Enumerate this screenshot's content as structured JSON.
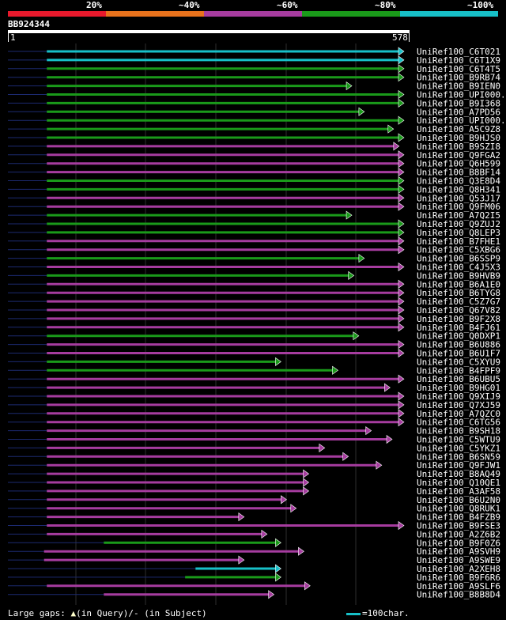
{
  "legend": [
    {
      "label": "20%",
      "color": "#e8192c"
    },
    {
      "label": "~40%",
      "color": "#e8721c"
    },
    {
      "label": "~60%",
      "color": "#a63c9f"
    },
    {
      "label": "~80%",
      "color": "#1a9a1a"
    },
    {
      "label": "~100%",
      "color": "#17c0c8"
    }
  ],
  "query": {
    "name": "BB924344",
    "start_label": "1",
    "end_label": "578",
    "length": 578
  },
  "hits": [
    {
      "name": "UniRef100_C6T021",
      "start": 56,
      "end": 570,
      "color": "cyan"
    },
    {
      "name": "UniRef100_C6T1X9",
      "start": 56,
      "end": 570,
      "color": "cyan"
    },
    {
      "name": "UniRef100_C6T4T5",
      "start": 56,
      "end": 570,
      "color": "green"
    },
    {
      "name": "UniRef100_B9RB74",
      "start": 56,
      "end": 570,
      "color": "green"
    },
    {
      "name": "UniRef100_B9IEN0",
      "start": 56,
      "end": 495,
      "color": "green"
    },
    {
      "name": "UniRef100_UPI000..",
      "start": 56,
      "end": 570,
      "color": "green"
    },
    {
      "name": "UniRef100_B9I368",
      "start": 56,
      "end": 570,
      "color": "green"
    },
    {
      "name": "UniRef100_A7PD56",
      "start": 56,
      "end": 513,
      "color": "green"
    },
    {
      "name": "UniRef100_UPI000..",
      "start": 56,
      "end": 570,
      "color": "green"
    },
    {
      "name": "UniRef100_A5C9Z8",
      "start": 56,
      "end": 555,
      "color": "green"
    },
    {
      "name": "UniRef100_B9HJS0",
      "start": 56,
      "end": 570,
      "color": "green"
    },
    {
      "name": "UniRef100_B9SZI8",
      "start": 56,
      "end": 563,
      "color": "purple"
    },
    {
      "name": "UniRef100_Q9FGA2",
      "start": 56,
      "end": 570,
      "color": "purple"
    },
    {
      "name": "UniRef100_Q6H599",
      "start": 56,
      "end": 570,
      "color": "purple"
    },
    {
      "name": "UniRef100_B8BF14",
      "start": 56,
      "end": 570,
      "color": "purple"
    },
    {
      "name": "UniRef100_Q3E8D4",
      "start": 56,
      "end": 570,
      "color": "green"
    },
    {
      "name": "UniRef100_Q8H341",
      "start": 56,
      "end": 570,
      "color": "green"
    },
    {
      "name": "UniRef100_Q53J17",
      "start": 56,
      "end": 570,
      "color": "purple"
    },
    {
      "name": "UniRef100_Q9FM06",
      "start": 56,
      "end": 570,
      "color": "purple"
    },
    {
      "name": "UniRef100_A7Q2I5",
      "start": 56,
      "end": 495,
      "color": "green"
    },
    {
      "name": "UniRef100_Q9ZUJ2",
      "start": 56,
      "end": 570,
      "color": "green"
    },
    {
      "name": "UniRef100_Q8LEP3",
      "start": 56,
      "end": 570,
      "color": "green"
    },
    {
      "name": "UniRef100_B7FHE1",
      "start": 56,
      "end": 570,
      "color": "purple"
    },
    {
      "name": "UniRef100_C5XBG6",
      "start": 56,
      "end": 570,
      "color": "purple"
    },
    {
      "name": "UniRef100_B6SSP9",
      "start": 56,
      "end": 513,
      "color": "green"
    },
    {
      "name": "UniRef100_C4J5X3",
      "start": 56,
      "end": 570,
      "color": "purple"
    },
    {
      "name": "UniRef100_B9HVB9",
      "start": 56,
      "end": 498,
      "color": "green"
    },
    {
      "name": "UniRef100_B6A1E0",
      "start": 56,
      "end": 570,
      "color": "purple"
    },
    {
      "name": "UniRef100_B6TYG8",
      "start": 56,
      "end": 570,
      "color": "purple"
    },
    {
      "name": "UniRef100_C5Z7G7",
      "start": 56,
      "end": 570,
      "color": "purple"
    },
    {
      "name": "UniRef100_Q67V82",
      "start": 56,
      "end": 570,
      "color": "purple"
    },
    {
      "name": "UniRef100_B9F2X8",
      "start": 56,
      "end": 570,
      "color": "purple"
    },
    {
      "name": "UniRef100_B4FJ61",
      "start": 56,
      "end": 570,
      "color": "purple"
    },
    {
      "name": "UniRef100_Q0DXP1",
      "start": 56,
      "end": 505,
      "color": "green"
    },
    {
      "name": "UniRef100_B6U886",
      "start": 56,
      "end": 570,
      "color": "purple"
    },
    {
      "name": "UniRef100_B6U1F7",
      "start": 56,
      "end": 570,
      "color": "purple"
    },
    {
      "name": "UniRef100_C5XYU9",
      "start": 56,
      "end": 393,
      "color": "green"
    },
    {
      "name": "UniRef100_B4FPF9",
      "start": 56,
      "end": 475,
      "color": "green"
    },
    {
      "name": "UniRef100_B6UBU5",
      "start": 56,
      "end": 570,
      "color": "purple"
    },
    {
      "name": "UniRef100_B9HG01",
      "start": 56,
      "end": 550,
      "color": "purple"
    },
    {
      "name": "UniRef100_Q9XIJ9",
      "start": 56,
      "end": 570,
      "color": "purple"
    },
    {
      "name": "UniRef100_Q7XJ59",
      "start": 56,
      "end": 570,
      "color": "purple"
    },
    {
      "name": "UniRef100_A7QZC0",
      "start": 56,
      "end": 570,
      "color": "purple"
    },
    {
      "name": "UniRef100_C6TG56",
      "start": 56,
      "end": 570,
      "color": "purple"
    },
    {
      "name": "UniRef100_B9SH18",
      "start": 56,
      "end": 523,
      "color": "purple"
    },
    {
      "name": "UniRef100_C5WTU9",
      "start": 56,
      "end": 553,
      "color": "purple"
    },
    {
      "name": "UniRef100_C5YKZ1",
      "start": 56,
      "end": 456,
      "color": "purple"
    },
    {
      "name": "UniRef100_B6SN59",
      "start": 56,
      "end": 490,
      "color": "purple"
    },
    {
      "name": "UniRef100_Q9FJW1",
      "start": 56,
      "end": 538,
      "color": "purple"
    },
    {
      "name": "UniRef100_B8AQ49",
      "start": 56,
      "end": 433,
      "color": "purple"
    },
    {
      "name": "UniRef100_Q10QE1",
      "start": 56,
      "end": 433,
      "color": "purple"
    },
    {
      "name": "UniRef100_A3AF58",
      "start": 56,
      "end": 433,
      "color": "purple"
    },
    {
      "name": "UniRef100_B6U2N0",
      "start": 56,
      "end": 401,
      "color": "purple"
    },
    {
      "name": "UniRef100_Q8RUK1",
      "start": 56,
      "end": 415,
      "color": "purple"
    },
    {
      "name": "UniRef100_B4FZB9",
      "start": 56,
      "end": 340,
      "color": "purple"
    },
    {
      "name": "UniRef100_B9FSE3",
      "start": 56,
      "end": 570,
      "color": "purple"
    },
    {
      "name": "UniRef100_A2Z6B2",
      "start": 56,
      "end": 373,
      "color": "purple"
    },
    {
      "name": "UniRef100_B9F0Z6",
      "start": 138,
      "end": 393,
      "color": "green"
    },
    {
      "name": "UniRef100_A9SVH9",
      "start": 52,
      "end": 426,
      "color": "purple"
    },
    {
      "name": "UniRef100_A9SWE9",
      "start": 52,
      "end": 340,
      "color": "purple"
    },
    {
      "name": "UniRef100_A2XEH8",
      "start": 270,
      "end": 393,
      "color": "cyan"
    },
    {
      "name": "UniRef100_B9F6R6",
      "start": 255,
      "end": 393,
      "color": "green"
    },
    {
      "name": "UniRef100_A9SLF6",
      "start": 56,
      "end": 435,
      "color": "purple"
    },
    {
      "name": "UniRef100_B8B8D4",
      "start": 138,
      "end": 383,
      "color": "purple"
    }
  ],
  "footer": {
    "gaps_label": "Large gaps:",
    "gap_query_symbol": "▲",
    "gap_query_text": "(in Query)/",
    "gap_subject_text": "- (in Subject)",
    "scale_text": "=100char."
  }
}
